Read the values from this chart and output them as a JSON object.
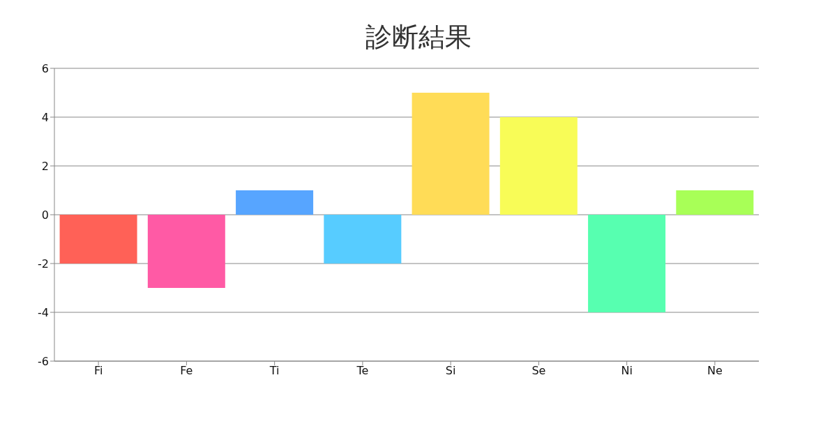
{
  "chart_data": {
    "type": "bar",
    "title": "診断結果",
    "categories": [
      "Fi",
      "Fe",
      "Ti",
      "Te",
      "Si",
      "Se",
      "Ni",
      "Ne"
    ],
    "values": [
      -2,
      -3,
      1,
      -2,
      5,
      4,
      -4,
      1
    ],
    "colors": [
      "#ff6157",
      "#ff5aa5",
      "#57a5ff",
      "#57ccff",
      "#ffdc57",
      "#f8fc57",
      "#57ffb0",
      "#a8ff57"
    ],
    "ylim": [
      -6,
      6
    ],
    "yticks": [
      -6,
      -4,
      -2,
      0,
      2,
      4,
      6
    ],
    "grid": "y",
    "legend": false
  }
}
